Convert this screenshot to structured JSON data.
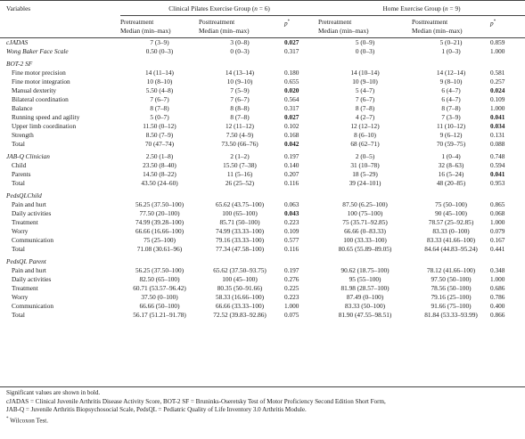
{
  "header": {
    "variables": "Variables",
    "group1_pre": "Clinical Pilates Exercise Group (",
    "group1_n": "n",
    "group1_post": " = 6)",
    "group2_pre": "Home Exercise Group (",
    "group2_n": "n",
    "group2_post": " = 9)",
    "pre_label_1": "Pretreatment",
    "pre_label_2": "Median (min–max)",
    "post_label_1": "Posttreatment",
    "post_label_2": "Median (min–max)",
    "p_label": "p",
    "p_sup": "*"
  },
  "rows": [
    {
      "type": "row",
      "label": "cJADAS",
      "italic": true,
      "indent": false,
      "v": [
        "7 (3–9)",
        "3 (0–8)",
        "0.027",
        "5 (0–9)",
        "5 (0–21)",
        "0.859"
      ],
      "bold": [
        false,
        false,
        true,
        false,
        false,
        false
      ]
    },
    {
      "type": "row",
      "label": "Wong Baker Face Scale",
      "italic": true,
      "indent": false,
      "v": [
        "0.50 (0–3)",
        "0 (0–3)",
        "0.317",
        "0 (0–3)",
        "1 (0–3)",
        "1.000"
      ],
      "bold": [
        false,
        false,
        false,
        false,
        false,
        false
      ]
    },
    {
      "type": "section",
      "label": "BOT-2 SF"
    },
    {
      "type": "row",
      "label": "Fine motor precision",
      "italic": false,
      "indent": true,
      "v": [
        "14 (11–14)",
        "14 (13–14)",
        "0.180",
        "14 (10–14)",
        "14 (12–14)",
        "0.581"
      ],
      "bold": [
        false,
        false,
        false,
        false,
        false,
        false
      ]
    },
    {
      "type": "row",
      "label": "Fine motor integration",
      "italic": false,
      "indent": true,
      "v": [
        "10 (8–10)",
        "10 (9–10)",
        "0.655",
        "10 (9–10)",
        "9 (8–10)",
        "0.257"
      ],
      "bold": [
        false,
        false,
        false,
        false,
        false,
        false
      ]
    },
    {
      "type": "row",
      "label": "Manual dexterity",
      "italic": false,
      "indent": true,
      "v": [
        "5.50 (4–8)",
        "7 (5–9)",
        "0.020",
        "5 (4–7)",
        "6 (4–7)",
        "0.024"
      ],
      "bold": [
        false,
        false,
        true,
        false,
        false,
        true
      ]
    },
    {
      "type": "row",
      "label": "Bilateral coordination",
      "italic": false,
      "indent": true,
      "v": [
        "7 (6–7)",
        "7 (6–7)",
        "0.564",
        "7 (6–7)",
        "6 (4–7)",
        "0.109"
      ],
      "bold": [
        false,
        false,
        false,
        false,
        false,
        false
      ]
    },
    {
      "type": "row",
      "label": "Balance",
      "italic": false,
      "indent": true,
      "v": [
        "8 (7–8)",
        "8 (8–8)",
        "0.317",
        "8 (7–8)",
        "8 (7–8)",
        "1.000"
      ],
      "bold": [
        false,
        false,
        false,
        false,
        false,
        false
      ]
    },
    {
      "type": "row",
      "label": "Running speed and agility",
      "italic": false,
      "indent": true,
      "v": [
        "5 (0–7)",
        "8 (7–8)",
        "0.027",
        "4 (2–7)",
        "7 (3–9)",
        "0.041"
      ],
      "bold": [
        false,
        false,
        true,
        false,
        false,
        true
      ]
    },
    {
      "type": "row",
      "label": "Upper limb coordination",
      "italic": false,
      "indent": true,
      "v": [
        "11.50 (0–12)",
        "12 (11–12)",
        "0.102",
        "12 (12–12)",
        "11 (10–12)",
        "0.034"
      ],
      "bold": [
        false,
        false,
        false,
        false,
        false,
        true
      ]
    },
    {
      "type": "row",
      "label": "Strength",
      "italic": false,
      "indent": true,
      "v": [
        "8.50 (7–9)",
        "7.50 (4–9)",
        "0.168",
        "8 (6–10)",
        "9 (6–12)",
        "0.131"
      ],
      "bold": [
        false,
        false,
        false,
        false,
        false,
        false
      ]
    },
    {
      "type": "row",
      "label": "Total",
      "italic": false,
      "indent": true,
      "v": [
        "70 (47–74)",
        "73.50 (66–76)",
        "0.042",
        "68 (62–71)",
        "70 (59–75)",
        "0.088"
      ],
      "bold": [
        false,
        false,
        true,
        false,
        false,
        false
      ]
    },
    {
      "type": "row",
      "label": "JAB-Q Clinician",
      "italic": true,
      "indent": false,
      "v": [
        "2.50 (1–8)",
        "2 (1–2)",
        "0.197",
        "2 (0–5)",
        "1 (0–4)",
        "0.748"
      ],
      "bold": [
        false,
        false,
        false,
        false,
        false,
        false
      ]
    },
    {
      "type": "row",
      "label": "Child",
      "italic": false,
      "indent": true,
      "v": [
        "23.50 (8–40)",
        "15.50 (7–38)",
        "0.140",
        "31 (10–78)",
        "32 (8–63)",
        "0.594"
      ],
      "bold": [
        false,
        false,
        false,
        false,
        false,
        false
      ]
    },
    {
      "type": "row",
      "label": "Parents",
      "italic": false,
      "indent": true,
      "v": [
        "14.50 (8–22)",
        "11 (5–16)",
        "0.207",
        "18 (5–29)",
        "16 (5–24)",
        "0.041"
      ],
      "bold": [
        false,
        false,
        false,
        false,
        false,
        true
      ]
    },
    {
      "type": "row",
      "label": "Total",
      "italic": false,
      "indent": true,
      "v": [
        "43.50 (24–60)",
        "26 (25–52)",
        "0.116",
        "39 (24–101)",
        "48 (20–85)",
        "0.953"
      ],
      "bold": [
        false,
        false,
        false,
        false,
        false,
        false
      ]
    },
    {
      "type": "section",
      "label": "PedsQLChild"
    },
    {
      "type": "row",
      "label": "Pain and hurt",
      "italic": false,
      "indent": true,
      "v": [
        "56.25 (37.50–100)",
        "65.62 (43.75–100)",
        "0.063",
        "87.50 (6.25–100)",
        "75 (50–100)",
        "0.865"
      ],
      "bold": [
        false,
        false,
        false,
        false,
        false,
        false
      ]
    },
    {
      "type": "row",
      "label": "Daily activities",
      "italic": false,
      "indent": true,
      "v": [
        "77.50 (20–100)",
        "100 (65–100)",
        "0.043",
        "100 (75–100)",
        "90 (45–100)",
        "0.068"
      ],
      "bold": [
        false,
        false,
        true,
        false,
        false,
        false
      ]
    },
    {
      "type": "row",
      "label": "Treatment",
      "italic": false,
      "indent": true,
      "v": [
        "74.99 (39.28–100)",
        "85.71 (50–100)",
        "0.223",
        "75 (35.71–92.85)",
        "78.57 (25–92.85)",
        "1.000"
      ],
      "bold": [
        false,
        false,
        false,
        false,
        false,
        false
      ]
    },
    {
      "type": "row",
      "label": "Worry",
      "italic": false,
      "indent": true,
      "v": [
        "66.66 (16.66–100)",
        "74.99 (33.33–100)",
        "0.109",
        "66.66 (0–83.33)",
        "83.33 (0–100)",
        "0.079"
      ],
      "bold": [
        false,
        false,
        false,
        false,
        false,
        false
      ]
    },
    {
      "type": "row",
      "label": "Communication",
      "italic": false,
      "indent": true,
      "v": [
        "75 (25–100)",
        "79.16 (33.33–100)",
        "0.577",
        "100 (33.33–100)",
        "83.33 (41.66–100)",
        "0.167"
      ],
      "bold": [
        false,
        false,
        false,
        false,
        false,
        false
      ]
    },
    {
      "type": "row",
      "label": "Total",
      "italic": false,
      "indent": true,
      "v": [
        "71.08 (30.61–96)",
        "77.34 (47.58–100)",
        "0.116",
        "80.65 (55.89–89.05)",
        "84.64 (44.83–95.24)",
        "0.441"
      ],
      "bold": [
        false,
        false,
        false,
        false,
        false,
        false
      ]
    },
    {
      "type": "section",
      "label": "PedsQL Parent"
    },
    {
      "type": "row",
      "label": "Pain and hurt",
      "italic": false,
      "indent": true,
      "v": [
        "56.25 (37.50–100)",
        "65.62 (37.50–93.75)",
        "0.197",
        "90.62 (18.75–100)",
        "78.12 (41.66–100)",
        "0.348"
      ],
      "bold": [
        false,
        false,
        false,
        false,
        false,
        false
      ]
    },
    {
      "type": "row",
      "label": "Daily activities",
      "italic": false,
      "indent": true,
      "v": [
        "82.50 (65–100)",
        "100 (45–100)",
        "0.276",
        "95 (55–100)",
        "97.50 (50–100)",
        "1.000"
      ],
      "bold": [
        false,
        false,
        false,
        false,
        false,
        false
      ]
    },
    {
      "type": "row",
      "label": "Treatment",
      "italic": false,
      "indent": true,
      "v": [
        "60.71 (53.57–96.42)",
        "80.35 (50–91.66)",
        "0.225",
        "81.98 (28.57–100)",
        "78.56 (50–100)",
        "0.686"
      ],
      "bold": [
        false,
        false,
        false,
        false,
        false,
        false
      ]
    },
    {
      "type": "row",
      "label": "Worry",
      "italic": false,
      "indent": true,
      "v": [
        "37.50 (0–100)",
        "58.33 (16.66–100)",
        "0.223",
        "87.49 (0–100)",
        "79.16 (25–100)",
        "0.786"
      ],
      "bold": [
        false,
        false,
        false,
        false,
        false,
        false
      ]
    },
    {
      "type": "row",
      "label": "Communication",
      "italic": false,
      "indent": true,
      "v": [
        "66.66 (50–100)",
        "66.66 (33.33–100)",
        "1.000",
        "83.33 (50–100)",
        "91.66 (75–100)",
        "0.400"
      ],
      "bold": [
        false,
        false,
        false,
        false,
        false,
        false
      ]
    },
    {
      "type": "row",
      "label": "Total",
      "italic": false,
      "indent": true,
      "v": [
        "56.17 (51.21–91.78)",
        "72.52 (39.83–92.86)",
        "0.075",
        "81.90 (47.55–98.51)",
        "81.84 (53.33–93.99)",
        "0.866"
      ],
      "bold": [
        false,
        false,
        false,
        false,
        false,
        false
      ]
    }
  ],
  "notes": [
    "Significant values are shown in bold.",
    "cJADAS = Clinical Juvenile Arthritis Disease Activity Score, BOT-2 SF = Bruninks-Oseretsky Test of Motor Proficiency Second Edition Short Form,",
    "JAB-Q = Juvenile Arthritis Biopsychosocial Scale, PedsQL = Pediatric Quality of Life Inventory 3.0 Arthritis Module.",
    "Wilcoxon Test."
  ],
  "footnote_mark": "*"
}
